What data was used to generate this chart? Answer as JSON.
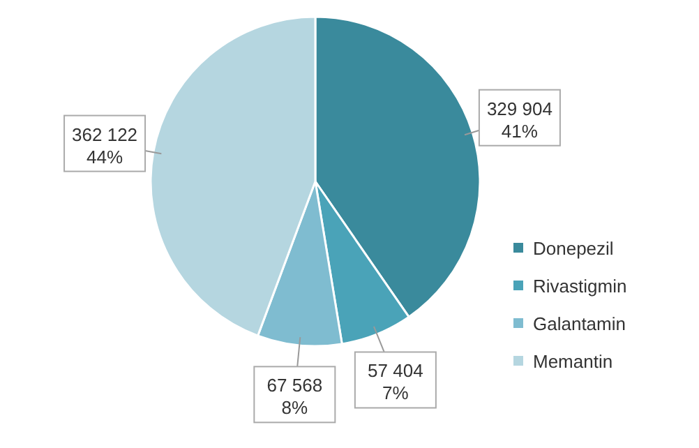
{
  "chart_data": {
    "type": "pie",
    "categories": [
      "Donepezil",
      "Rivastigmin",
      "Galantamin",
      "Memantin"
    ],
    "values": [
      329904,
      57404,
      67568,
      362122
    ],
    "colors": [
      "#3a8a9c",
      "#4aa3b8",
      "#7fbcd0",
      "#b5d6e0"
    ],
    "value_labels": [
      "329 904\n41%",
      "57 404\n7%",
      "67 568\n8%",
      "362 122\n44%"
    ],
    "legend": "right"
  }
}
